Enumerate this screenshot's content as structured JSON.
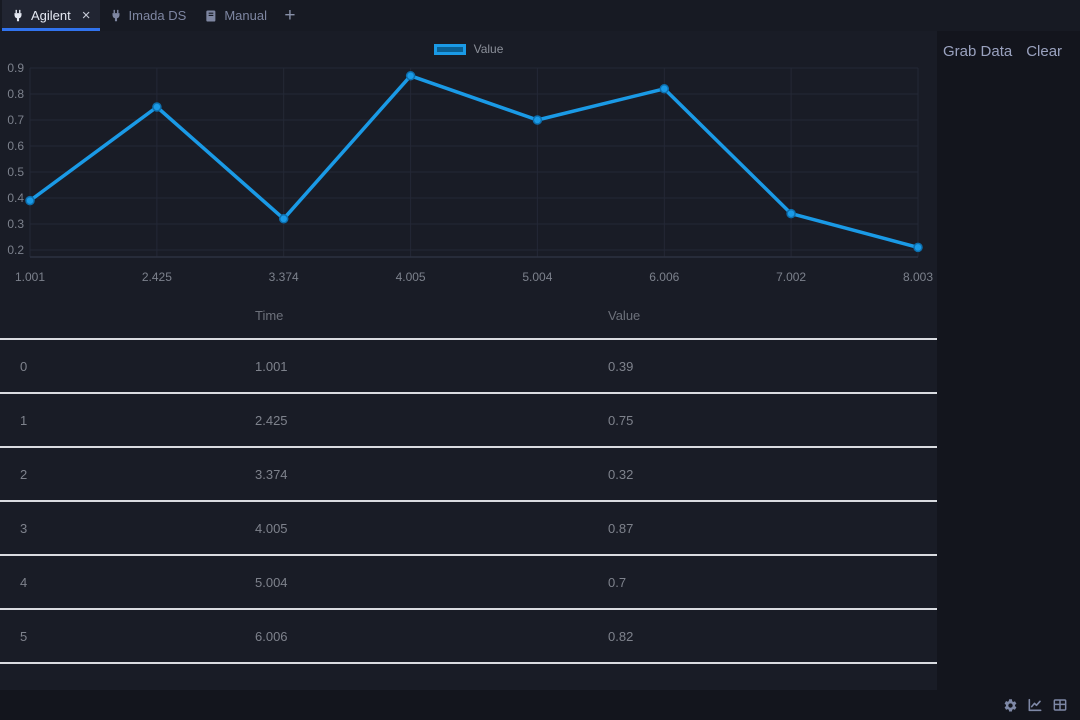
{
  "tabbar": {
    "tabs": [
      {
        "label": "Agilent",
        "icon": "plug-icon",
        "active": true,
        "close_label": "×"
      },
      {
        "label": "Imada DS",
        "icon": "plug-icon",
        "active": false
      },
      {
        "label": "Manual",
        "icon": "book-icon",
        "active": false
      }
    ],
    "add_tab_label": "+"
  },
  "side_panel": {
    "grab_data_label": "Grab Data",
    "clear_label": "Clear"
  },
  "chart_data": {
    "type": "line",
    "title": "",
    "legend": {
      "position": "top-center",
      "entries": [
        "Value"
      ]
    },
    "series": [
      {
        "name": "Value",
        "x": [
          1.001,
          2.425,
          3.374,
          4.005,
          5.004,
          6.006,
          7.002,
          8.003
        ],
        "values": [
          0.39,
          0.75,
          0.32,
          0.87,
          0.7,
          0.82,
          0.34,
          0.21
        ]
      }
    ],
    "x_tick_labels": [
      "1.001",
      "2.425",
      "3.374",
      "4.005",
      "5.004",
      "6.006",
      "7.002",
      "8.003"
    ],
    "y_ticks": [
      0.2,
      0.3,
      0.4,
      0.5,
      0.6,
      0.7,
      0.8,
      0.9
    ],
    "ylim": [
      0.2,
      0.9
    ],
    "grid": true,
    "line_color": "#1a9ae6"
  },
  "table": {
    "columns": {
      "index": "",
      "time": "Time",
      "value": "Value"
    },
    "rows": [
      {
        "index": "0",
        "time": "1.001",
        "value": "0.39"
      },
      {
        "index": "1",
        "time": "2.425",
        "value": "0.75"
      },
      {
        "index": "2",
        "time": "3.374",
        "value": "0.32"
      },
      {
        "index": "3",
        "time": "4.005",
        "value": "0.87"
      },
      {
        "index": "4",
        "time": "5.004",
        "value": "0.7"
      },
      {
        "index": "5",
        "time": "6.006",
        "value": "0.82"
      }
    ]
  },
  "colors": {
    "accent_blue": "#1a9ae6",
    "tab_underline": "#3173ee",
    "legend_fill": "#0a5f92",
    "background": "#13151d",
    "panel": "#191c26",
    "grid": "#242836",
    "axis": "#2c3140",
    "axis_text": "#7c818c",
    "separator": "#d9dbe0"
  }
}
